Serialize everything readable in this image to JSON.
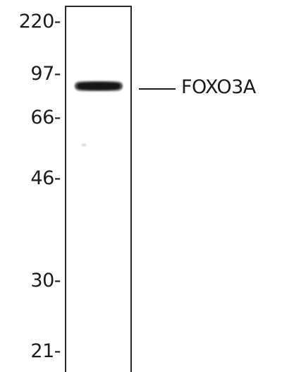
{
  "markers": {
    "m220": "220-",
    "m97": "97-",
    "m66": "66-",
    "m46": "46-",
    "m30": "30-",
    "m21": "21-"
  },
  "band": {
    "label": "FOXO3A"
  }
}
